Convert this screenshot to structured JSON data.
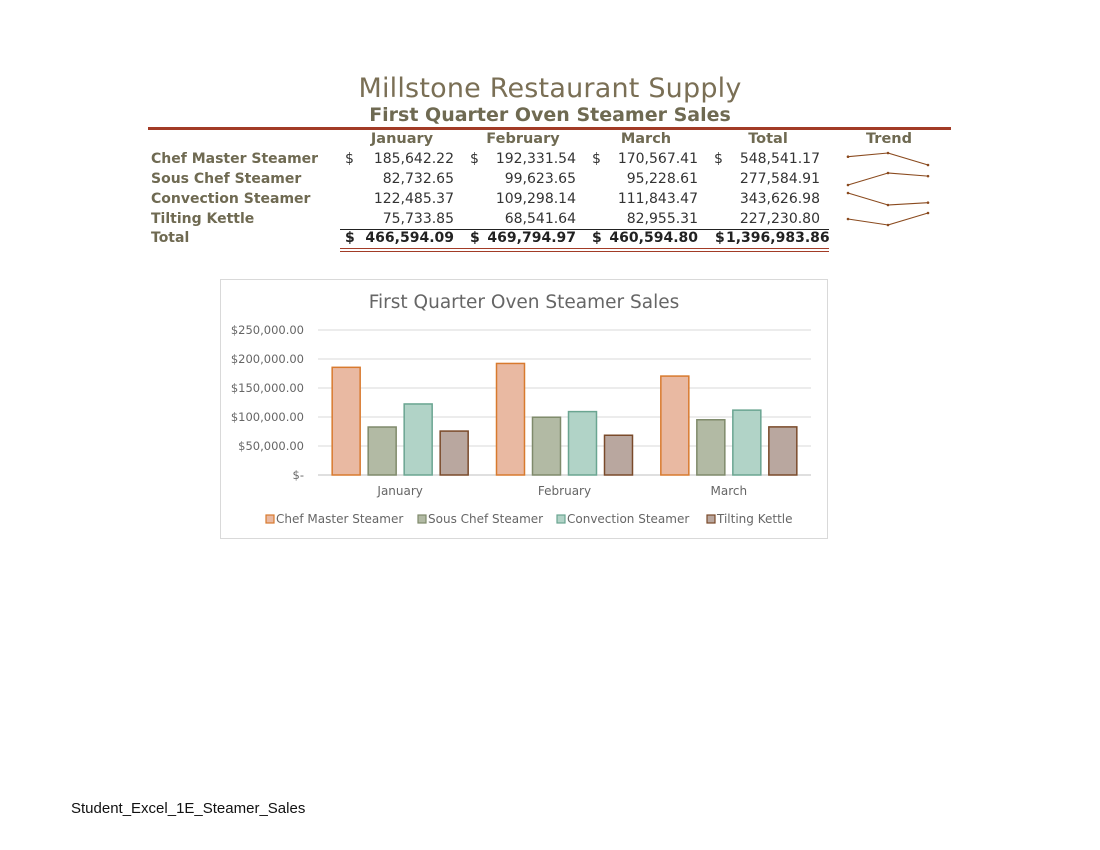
{
  "document": {
    "title": "Millstone Restaurant Supply",
    "subtitle": "First Quarter Oven Steamer Sales",
    "footer": "Student_Excel_1E_Steamer_Sales"
  },
  "table": {
    "headers": [
      "January",
      "February",
      "March",
      "Total",
      "Trend"
    ],
    "currency_symbol": "$",
    "rows": [
      {
        "label": "Chef Master Steamer",
        "values": [
          "185,642.22",
          "192,331.54",
          "170,567.41",
          "548,541.17"
        ]
      },
      {
        "label": "Sous Chef Steamer",
        "values": [
          "82,732.65",
          "99,623.65",
          "95,228.61",
          "277,584.91"
        ]
      },
      {
        "label": "Convection Steamer",
        "values": [
          "122,485.37",
          "109,298.14",
          "111,843.47",
          "343,626.98"
        ]
      },
      {
        "label": "Tilting Kettle",
        "values": [
          "75,733.85",
          "68,541.64",
          "82,955.31",
          "227,230.80"
        ]
      }
    ],
    "total": {
      "label": "Total",
      "values": [
        "466,594.09",
        "469,794.97",
        "460,594.80",
        "1,396,983.86"
      ]
    },
    "sparkline_color": "#8a4a1e"
  },
  "chart_data": {
    "type": "bar",
    "title": "First Quarter Oven Steamer Sales",
    "categories": [
      "January",
      "February",
      "March"
    ],
    "series": [
      {
        "name": "Chef Master Steamer",
        "values": [
          185642.22,
          192331.54,
          170567.41
        ],
        "fill": "#e9b9a2",
        "stroke": "#d87a2e"
      },
      {
        "name": "Sous Chef Steamer",
        "values": [
          82732.65,
          99623.65,
          95228.61
        ],
        "fill": "#b2baa4",
        "stroke": "#7f8a6b"
      },
      {
        "name": "Convection Steamer",
        "values": [
          122485.37,
          109298.14,
          111843.47
        ],
        "fill": "#b1d3c7",
        "stroke": "#6aa591"
      },
      {
        "name": "Tilting Kettle",
        "values": [
          75733.85,
          68541.64,
          82955.31
        ],
        "fill": "#b9a79f",
        "stroke": "#7a4a2a"
      }
    ],
    "ylim": [
      0,
      250000
    ],
    "yticks": [
      0,
      50000,
      100000,
      150000,
      200000,
      250000
    ],
    "ytick_labels": [
      "$-",
      "$50,000.00",
      "$100,000.00",
      "$150,000.00",
      "$200,000.00",
      "$250,000.00"
    ],
    "grid": true,
    "legend_position": "bottom"
  }
}
